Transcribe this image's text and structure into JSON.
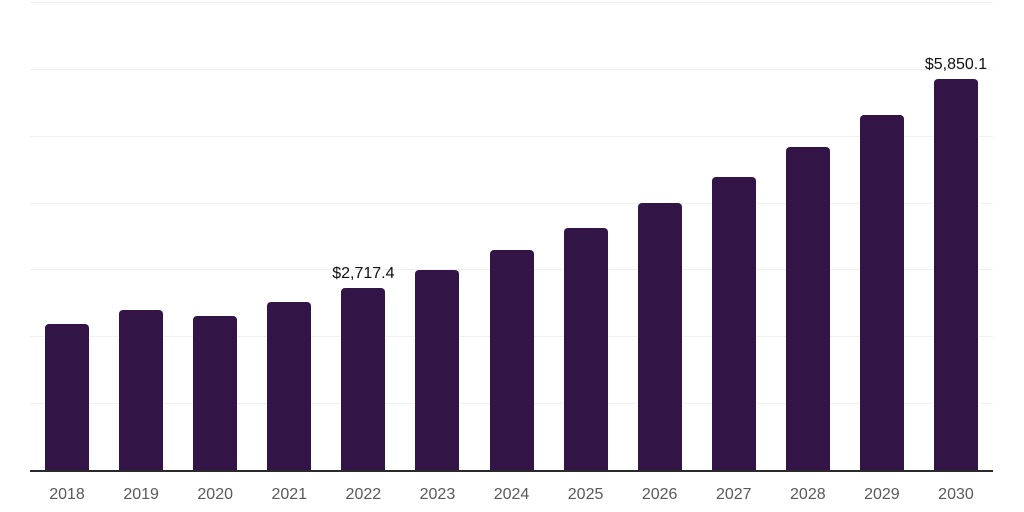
{
  "chart_data": {
    "type": "bar",
    "title": "",
    "xlabel": "",
    "ylabel": "",
    "categories": [
      "2018",
      "2019",
      "2020",
      "2021",
      "2022",
      "2023",
      "2024",
      "2025",
      "2026",
      "2027",
      "2028",
      "2029",
      "2030"
    ],
    "values": [
      2180,
      2390,
      2300,
      2510,
      2717.4,
      2990.8,
      3291.7,
      3622.8,
      3987.3,
      4388.3,
      4829.7,
      5315.5,
      5850.1
    ],
    "value_prefix": "$",
    "ylim": [
      0,
      7000
    ],
    "gridline_step": 1000,
    "grid": true,
    "legend": false,
    "y_axis_labels_visible": false,
    "bar_color": "#321447",
    "axis_color": "#2a2a2a",
    "gridline_color": "#f1f1f1",
    "tick_label_color": "#595959",
    "data_label_color": "#111111",
    "annotations": [
      {
        "category": "2022",
        "text": "$2,717.4",
        "value": 2717.4
      },
      {
        "category": "2030",
        "text": "$5,850.1",
        "value": 5850.1
      }
    ]
  }
}
